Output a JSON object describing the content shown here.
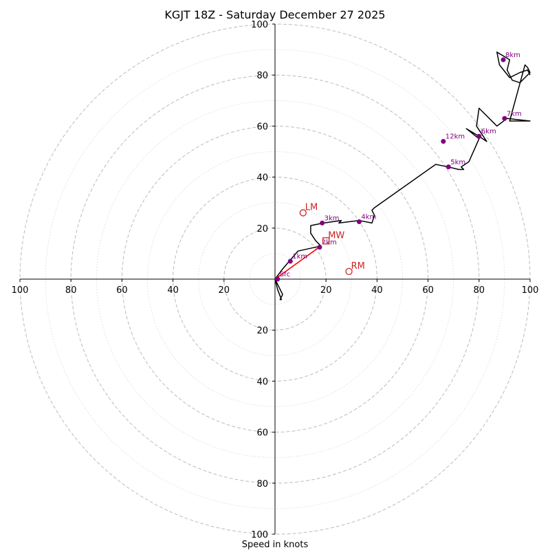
{
  "chart_data": {
    "type": "line",
    "subtype": "hodograph",
    "title": "KGJT 18Z - Saturday December 27 2025",
    "xlabel": "Speed in knots",
    "ylabel": "",
    "xlim": [
      -100,
      100
    ],
    "ylim": [
      -100,
      100
    ],
    "grid": true,
    "rings": {
      "major": [
        20,
        40,
        60,
        80,
        100
      ],
      "minor": [
        10,
        30,
        50,
        70,
        90
      ],
      "labels": [
        "20",
        "40",
        "60",
        "80",
        "100"
      ]
    },
    "series": [
      {
        "name": "hodograph",
        "color": "#000000",
        "x": [
          0,
          3,
          2,
          2.5,
          1,
          0,
          3,
          9,
          18,
          16,
          14,
          14,
          19,
          26,
          25,
          33,
          38,
          39,
          38,
          39,
          63,
          68,
          72,
          74,
          73,
          76,
          80,
          75,
          80,
          83,
          79,
          80,
          86,
          87,
          91,
          100,
          92,
          98,
          99,
          100,
          96,
          93,
          92,
          91,
          92,
          87,
          88,
          92,
          96,
          99,
          100
        ],
        "y": [
          0,
          -6,
          -8,
          -8,
          -4,
          0,
          4,
          11,
          13,
          15,
          18,
          21,
          22,
          23,
          22,
          23,
          22,
          25,
          27,
          28,
          45,
          44,
          43,
          43,
          44,
          46,
          55,
          59,
          56,
          54,
          60,
          67,
          61,
          60,
          63,
          62,
          62,
          84,
          83,
          81,
          77,
          78,
          80,
          82,
          86,
          89,
          84,
          79,
          81,
          82,
          80
        ]
      },
      {
        "name": "Bunkers deviation",
        "color": "#ff0000",
        "x": [
          0,
          18
        ],
        "y": [
          0,
          13
        ]
      }
    ],
    "height_markers": [
      {
        "label": "Sfc",
        "x": 1,
        "y": 0
      },
      {
        "label": "1km",
        "x": 6,
        "y": 7
      },
      {
        "label": "2km",
        "x": 17.5,
        "y": 12.5
      },
      {
        "label": "3km",
        "x": 18.5,
        "y": 22
      },
      {
        "label": "4km",
        "x": 33,
        "y": 22.5
      },
      {
        "label": "5km",
        "x": 68,
        "y": 44
      },
      {
        "label": "6km",
        "x": 80,
        "y": 56
      },
      {
        "label": "7km",
        "x": 90,
        "y": 63
      },
      {
        "label": "8km",
        "x": 89.5,
        "y": 86
      },
      {
        "label": "12km",
        "x": 66,
        "y": 54
      }
    ],
    "motion_markers": [
      {
        "label": "LM",
        "x": 11,
        "y": 26,
        "marker": "circle"
      },
      {
        "label": "MW",
        "x": 20,
        "y": 15,
        "marker": "square"
      },
      {
        "label": "RM",
        "x": 29,
        "y": 3,
        "marker": "circle"
      }
    ],
    "colors": {
      "line": "#000000",
      "height_marker": "#800080",
      "motion": "#cc2222",
      "shear": "#ff0000",
      "grid": "#bbbbbb"
    }
  }
}
